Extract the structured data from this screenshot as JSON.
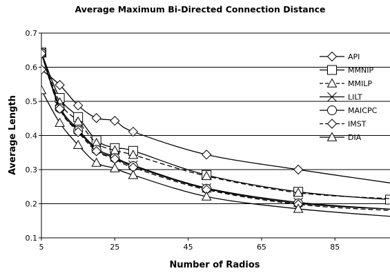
{
  "chart_data": {
    "type": "line",
    "title": "Average Maximum Bi-Directed Connection Distance",
    "xlabel": "Number of Radios",
    "ylabel": "Average Length",
    "xlim": [
      5,
      100
    ],
    "ylim": [
      0.1,
      0.7
    ],
    "xticks": [
      "5",
      "25",
      "45",
      "65",
      "85"
    ],
    "yticks": [
      "0.1",
      "0.2",
      "0.3",
      "0.4",
      "0.5",
      "0.6",
      "0.7"
    ],
    "grid": "horizontal",
    "legend_position": "right",
    "series": [
      {
        "name": "API",
        "marker": "diamond",
        "dash": "solid",
        "x": [
          5,
          10,
          15,
          20,
          25,
          30,
          50,
          75,
          100
        ],
        "y": [
          0.593,
          0.548,
          0.488,
          0.451,
          0.443,
          0.411,
          0.344,
          0.3,
          0.261
        ],
        "show_markers": [
          true,
          true,
          true,
          true,
          true,
          true,
          true,
          true,
          false
        ]
      },
      {
        "name": "MMNIP",
        "marker": "square",
        "dash": "solid",
        "x": [
          5,
          10,
          15,
          20,
          25,
          30,
          50,
          75,
          100
        ],
        "y": [
          0.643,
          0.51,
          0.454,
          0.386,
          0.363,
          0.355,
          0.284,
          0.235,
          0.212
        ],
        "show_markers": [
          true,
          true,
          true,
          true,
          true,
          true,
          true,
          true,
          true
        ]
      },
      {
        "name": "MMILP",
        "marker": "triangle",
        "dash": "dash",
        "x": [
          5,
          10,
          15,
          20,
          25,
          30,
          50,
          75,
          100
        ],
        "y": [
          0.641,
          0.497,
          0.441,
          0.378,
          0.356,
          0.343,
          0.281,
          0.232,
          0.215
        ],
        "show_markers": [
          true,
          true,
          true,
          true,
          true,
          true,
          true,
          true,
          false
        ]
      },
      {
        "name": "LILT",
        "marker": "x",
        "dash": "solid",
        "x": [
          5,
          10,
          15,
          20,
          25,
          30,
          50,
          75,
          100
        ],
        "y": [
          0.643,
          0.485,
          0.418,
          0.362,
          0.337,
          0.313,
          0.246,
          0.204,
          0.184
        ],
        "show_markers": [
          true,
          true,
          true,
          true,
          true,
          true,
          true,
          true,
          false
        ]
      },
      {
        "name": "MAICPC",
        "marker": "circle",
        "dash": "solid",
        "x": [
          5,
          10,
          15,
          20,
          25,
          30,
          50,
          75,
          100
        ],
        "y": [
          0.641,
          0.48,
          0.414,
          0.358,
          0.334,
          0.31,
          0.244,
          0.201,
          0.184
        ],
        "show_markers": [
          true,
          true,
          true,
          true,
          true,
          true,
          true,
          true,
          false
        ]
      },
      {
        "name": "IMST",
        "marker": "diamond",
        "dash": "dash",
        "x": [
          5,
          10,
          15,
          20,
          25,
          30,
          50,
          75,
          100
        ],
        "y": [
          0.64,
          0.478,
          0.41,
          0.354,
          0.331,
          0.306,
          0.241,
          0.198,
          0.18
        ],
        "show_markers": [
          true,
          true,
          true,
          true,
          true,
          true,
          true,
          true,
          false
        ]
      },
      {
        "name": "DIA",
        "marker": "triangle",
        "dash": "solid",
        "x": [
          5,
          10,
          15,
          20,
          25,
          30,
          50,
          75,
          100
        ],
        "y": [
          0.533,
          0.437,
          0.372,
          0.32,
          0.304,
          0.284,
          0.221,
          0.185,
          0.163
        ],
        "show_markers": [
          true,
          true,
          true,
          true,
          true,
          true,
          true,
          true,
          false
        ]
      }
    ]
  }
}
